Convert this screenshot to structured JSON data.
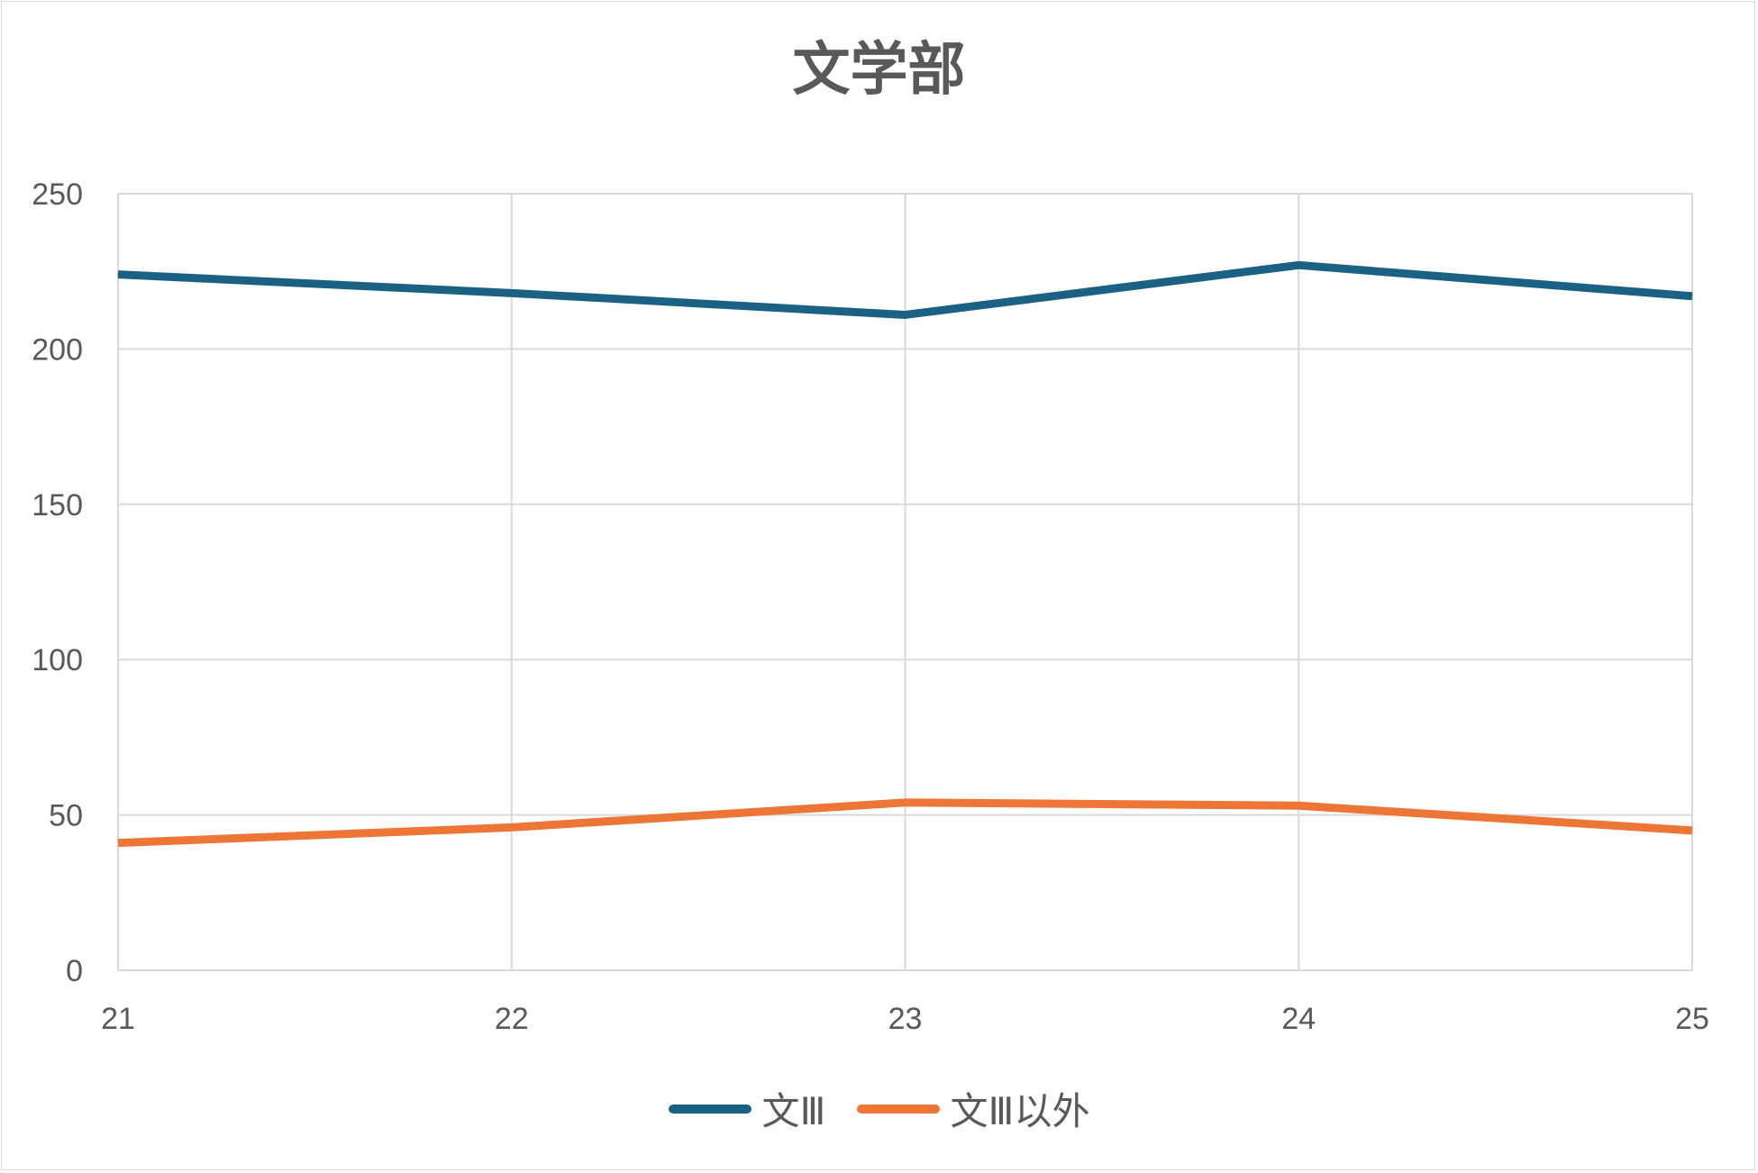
{
  "chart_data": {
    "type": "line",
    "title": "文学部",
    "x": [
      21,
      22,
      23,
      24,
      25
    ],
    "x_tick_labels": [
      "21",
      "22",
      "23",
      "24",
      "25"
    ],
    "ylim": [
      0,
      250
    ],
    "y_tick_labels": [
      "0",
      "50",
      "100",
      "150",
      "200",
      "250"
    ],
    "grid": true,
    "legend_position": "bottom",
    "series": [
      {
        "name": "文Ⅲ",
        "values": [
          224,
          218,
          211,
          227,
          217
        ],
        "color": "#1b6184"
      },
      {
        "name": "文Ⅲ以外",
        "values": [
          41,
          46,
          54,
          53,
          45
        ],
        "color": "#ed7637"
      }
    ]
  }
}
